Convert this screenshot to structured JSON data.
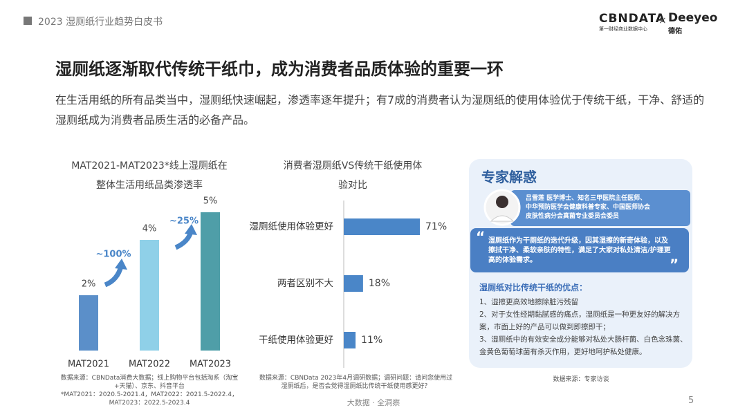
{
  "header": {
    "report": "2023 湿厕纸行业趋势白皮书",
    "logo_main": "CBNDATA",
    "logo_sub": "第一财经商业数据中心",
    "logo_sep": "×",
    "logo_partner": "Deeyeo",
    "logo_partner_sub": "德佑"
  },
  "title": "湿厕纸逐渐取代传统干纸巾，成为消费者品质体验的重要一环",
  "intro": "在生活用纸的所有品类当中，湿厕纸快速崛起，渗透率逐年提升；有7成的消费者认为湿厕纸的使用体验优于传统干纸，干净、舒适的湿厕纸成为消费者品质生活的必备产品。",
  "chart_data": [
    {
      "type": "bar",
      "title": "MAT2021-MAT2023*线上湿厕纸在整体生活用纸品类渗透率",
      "categories": [
        "MAT2021",
        "MAT2022",
        "MAT2023"
      ],
      "values": [
        2,
        4,
        5
      ],
      "value_labels": [
        "2%",
        "4%",
        "5%"
      ],
      "colors": [
        "#5b8fc9",
        "#8fd0e8",
        "#4f9ea8"
      ],
      "annotations": [
        "~100%",
        "~25%"
      ],
      "source": [
        "数据来源：CBNData消费大数据；线上购物平台包括淘系（淘宝+天猫）、京东、抖音平台",
        "*MAT2021：2020.5-2021.4，MAT2022：2021.5-2022.4，MAT2023：2022.5-2023.4"
      ]
    },
    {
      "type": "hbar",
      "title": "消费者湿厕纸VS传统干纸使用体验对比",
      "categories": [
        "湿厕纸使用体验更好",
        "两者区别不大",
        "干纸使用体验更好"
      ],
      "values": [
        71,
        18,
        11
      ],
      "value_labels": [
        "71%",
        "18%",
        "11%"
      ],
      "color": "#4a86c8",
      "source": "数据来源：CBNData 2023年4月调研数据；调研问题：请问您使用过湿厕纸后，是否会觉得湿厕纸比传统干纸使用感更好？"
    }
  ],
  "expert": {
    "title": "专家解惑",
    "bio": [
      "吕雪莲 医学博士、知名三甲医院主任医师、",
      "中华预防医学会健康科普专家、中国医师协会",
      "皮肤性病分会真菌专业委员会委员"
    ],
    "quote": "湿厕纸作为干厕纸的迭代升级，因其湿擦的新奇体验，以及擦拭干净、柔软亲肤的特性，满足了大家对私处清洁/护理更高的体验需求。",
    "advantages_title": "湿厕纸对比传统干纸的优点：",
    "advantages": [
      "1、湿擦更高效地擦除脏污残留",
      "2、对于女性经期黏腻感的痛点，湿厕纸是一种更友好的解决方案，市面上好的产品可以做到即擦即干；",
      "3、湿厕纸中的有效安全成分能够对私处大肠杆菌、白色念珠菌、金黄色葡萄球菌有杀灭作用，更好地呵护私处健康。"
    ],
    "source": "数据来源：专家访谈"
  },
  "footer": {
    "tagline": "大数据 · 全洞察",
    "page": "5"
  }
}
